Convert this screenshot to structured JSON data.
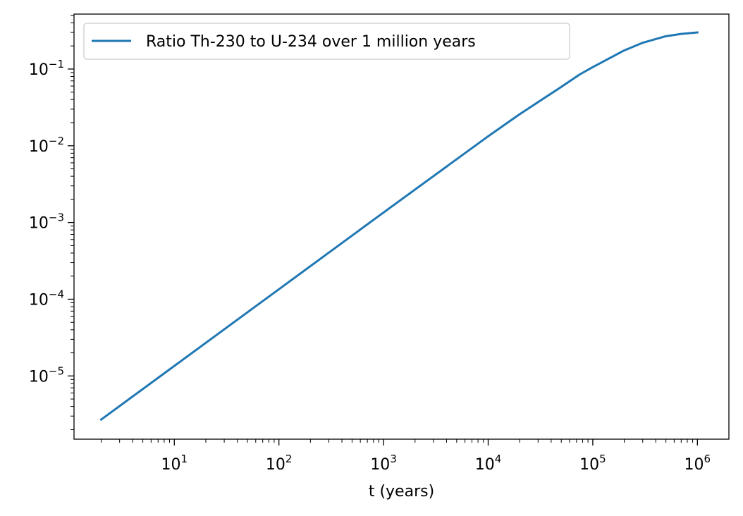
{
  "chart_data": {
    "type": "line",
    "title": "",
    "xlabel": "t (years)",
    "ylabel": "",
    "xscale": "log",
    "yscale": "log",
    "xlim": [
      1.1,
      2000000
    ],
    "ylim": [
      1.5e-06,
      0.52
    ],
    "x_tick_labels": [
      {
        "value": 10,
        "base": "10",
        "exp": "1"
      },
      {
        "value": 100,
        "base": "10",
        "exp": "2"
      },
      {
        "value": 1000,
        "base": "10",
        "exp": "3"
      },
      {
        "value": 10000,
        "base": "10",
        "exp": "4"
      },
      {
        "value": 100000,
        "base": "10",
        "exp": "5"
      },
      {
        "value": 1000000,
        "base": "10",
        "exp": "6"
      }
    ],
    "y_tick_labels": [
      {
        "value": 1e-05,
        "base": "10",
        "exp": "−5"
      },
      {
        "value": 0.0001,
        "base": "10",
        "exp": "−4"
      },
      {
        "value": 0.001,
        "base": "10",
        "exp": "−3"
      },
      {
        "value": 0.01,
        "base": "10",
        "exp": "−2"
      },
      {
        "value": 0.1,
        "base": "10",
        "exp": "−1"
      }
    ],
    "grid": false,
    "legend_position": "upper-left",
    "series": [
      {
        "name": "Ratio Th-230 to U-234 over 1 million years",
        "color": "#1f77b4",
        "x": [
          2,
          10,
          100,
          1000,
          10000,
          20000,
          50000,
          75000,
          100000,
          150000,
          200000,
          300000,
          500000,
          700000,
          1000000
        ],
        "y": [
          2.7e-06,
          1.35e-05,
          0.000135,
          0.00135,
          0.0133,
          0.0258,
          0.0585,
          0.085,
          0.106,
          0.142,
          0.175,
          0.22,
          0.268,
          0.287,
          0.3
        ]
      }
    ]
  }
}
